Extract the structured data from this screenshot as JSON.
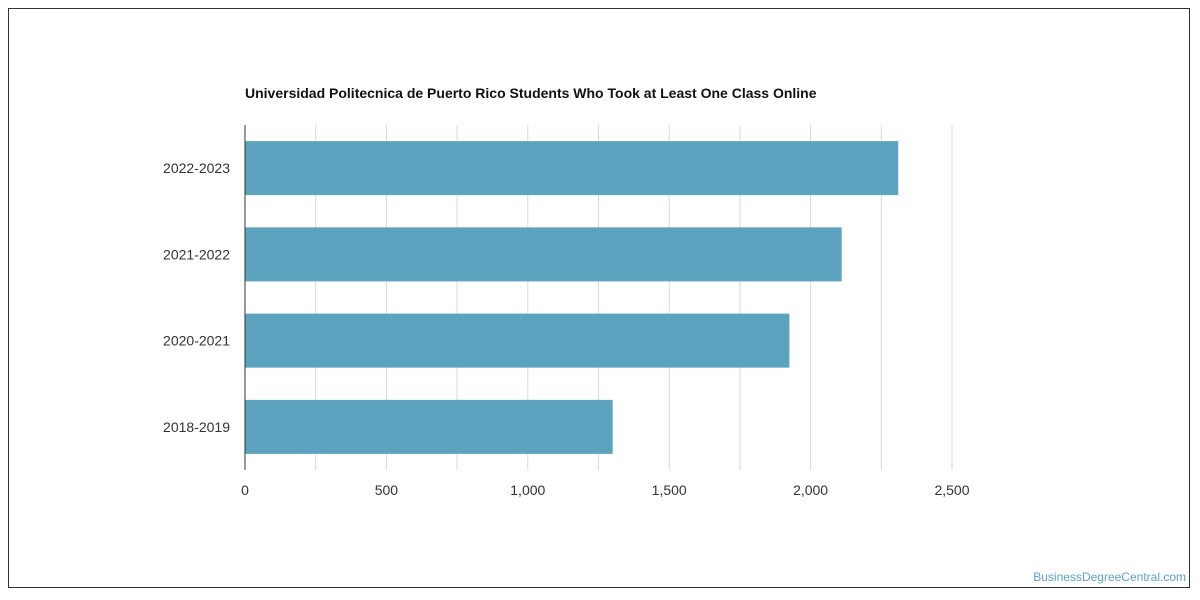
{
  "chart_data": {
    "type": "bar",
    "orientation": "horizontal",
    "title": "Universidad Politecnica de Puerto Rico Students Who Took at Least One Class Online",
    "categories": [
      "2022-2023",
      "2021-2022",
      "2020-2021",
      "2018-2019"
    ],
    "values": [
      2310,
      2110,
      1925,
      1300
    ],
    "xlim": [
      0,
      2500
    ],
    "x_ticks": [
      0,
      500,
      1000,
      1500,
      2000,
      2500
    ],
    "x_tick_labels": [
      "0",
      "500",
      "1,000",
      "1,500",
      "2,000",
      "2,500"
    ],
    "xlabel": "",
    "ylabel": "",
    "grid": true,
    "legend": "none",
    "bar_color": "#5ba3bf",
    "grid_color": "#d9d9d9"
  },
  "watermark": "BusinessDegreeCentral.com"
}
